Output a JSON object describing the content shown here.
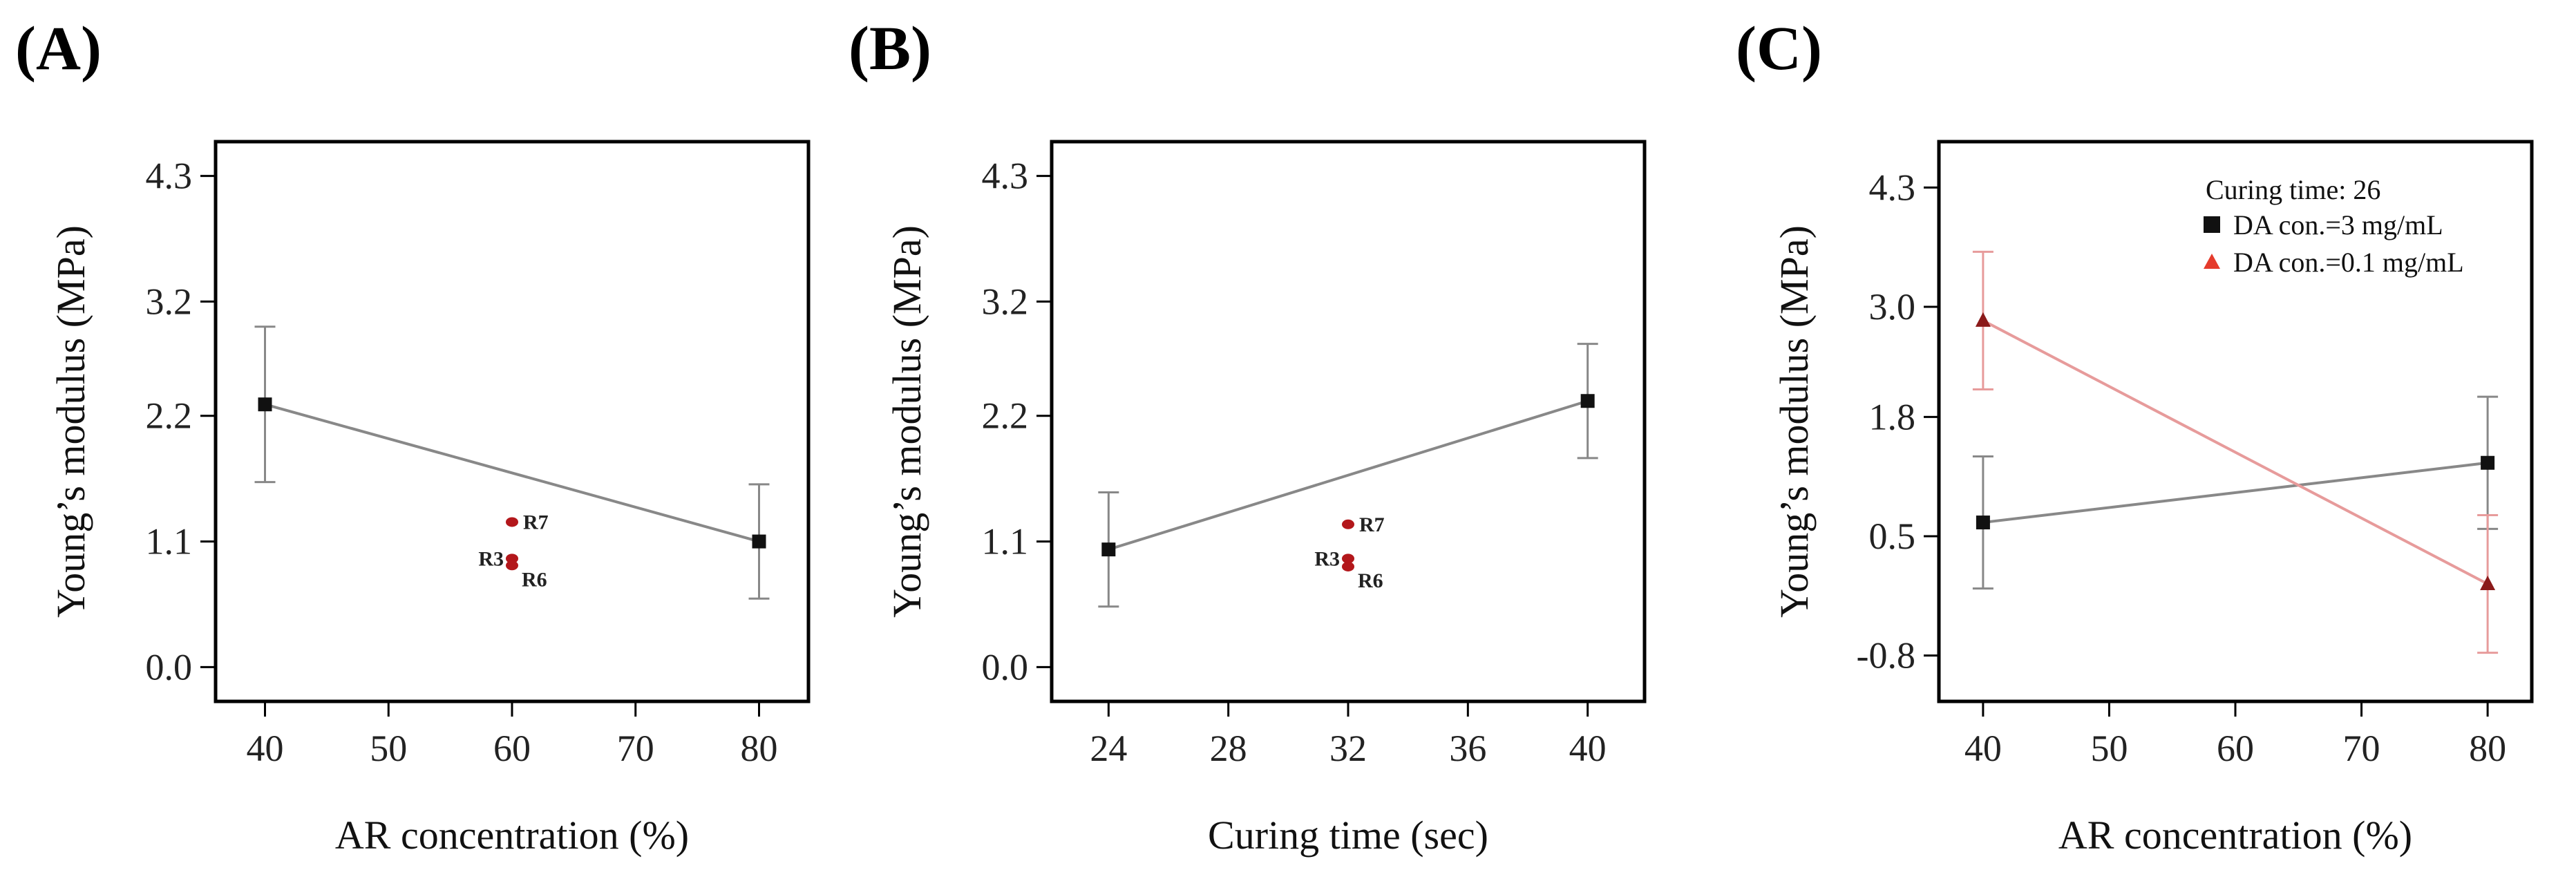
{
  "chart_data": [
    {
      "panel": "(A)",
      "type": "line",
      "xlabel": "AR concentration (%)",
      "ylabel": "Young’s modulus (MPa)",
      "xlim": [
        36,
        84
      ],
      "ylim": [
        -0.3,
        4.6
      ],
      "xticks": [
        "40",
        "50",
        "60",
        "70",
        "80"
      ],
      "yticks": [
        "0.0",
        "1.1",
        "2.2",
        "3.2",
        "4.3"
      ],
      "series": [
        {
          "name": "main",
          "color": "#888888",
          "marker": "square",
          "x": [
            40,
            80
          ],
          "y": [
            2.3,
            1.1
          ],
          "err": [
            0.68,
            0.5
          ]
        }
      ],
      "points": [
        {
          "label": "R7",
          "x": 60,
          "y": 1.27
        },
        {
          "label": "R3",
          "x": 60,
          "y": 0.95
        },
        {
          "label": "R6",
          "x": 60,
          "y": 0.89
        }
      ]
    },
    {
      "panel": "(B)",
      "type": "line",
      "xlabel": "Curing time (sec)",
      "ylabel": "Young’s modulus (MPa)",
      "xlim": [
        22.1,
        41.9
      ],
      "ylim": [
        -0.3,
        4.6
      ],
      "xticks": [
        "24",
        "28",
        "32",
        "36",
        "40"
      ],
      "yticks": [
        "0.0",
        "1.1",
        "2.2",
        "3.2",
        "4.3"
      ],
      "series": [
        {
          "name": "main",
          "color": "#888888",
          "marker": "square",
          "x": [
            24,
            40
          ],
          "y": [
            1.03,
            2.33
          ],
          "err": [
            0.5,
            0.5
          ]
        }
      ],
      "points": [
        {
          "label": "R7",
          "x": 32,
          "y": 1.25
        },
        {
          "label": "R3",
          "x": 32,
          "y": 0.95
        },
        {
          "label": "R6",
          "x": 32,
          "y": 0.88
        }
      ]
    },
    {
      "panel": "(C)",
      "type": "line",
      "xlabel": "AR concentration (%)",
      "ylabel": "Young’s modulus (MPa)",
      "xlim": [
        36.5,
        83.5
      ],
      "ylim": [
        -1.3,
        4.8
      ],
      "xticks": [
        "40",
        "50",
        "60",
        "70",
        "80"
      ],
      "yticks": [
        "-0.8",
        "0.5",
        "1.8",
        "3.0",
        "4.3"
      ],
      "legend": {
        "title": "Curing time: 26",
        "entries": [
          "DA con.=3 mg/mL",
          "DA con.=0.1 mg/mL"
        ],
        "position": "top-right"
      },
      "series": [
        {
          "name": "DA con.=3 mg/mL",
          "color": "#888888",
          "marker": "square",
          "markerColor": "#111111",
          "x": [
            40,
            80
          ],
          "y": [
            0.65,
            1.3
          ],
          "err": [
            0.72,
            0.72
          ]
        },
        {
          "name": "DA con.=0.1 mg/mL",
          "color": "#e79b9b",
          "marker": "triangle",
          "markerColor": "#8b1a1a",
          "x": [
            40,
            80
          ],
          "y": [
            2.85,
            -0.02
          ],
          "err": [
            0.75,
            0.75
          ]
        }
      ]
    }
  ]
}
